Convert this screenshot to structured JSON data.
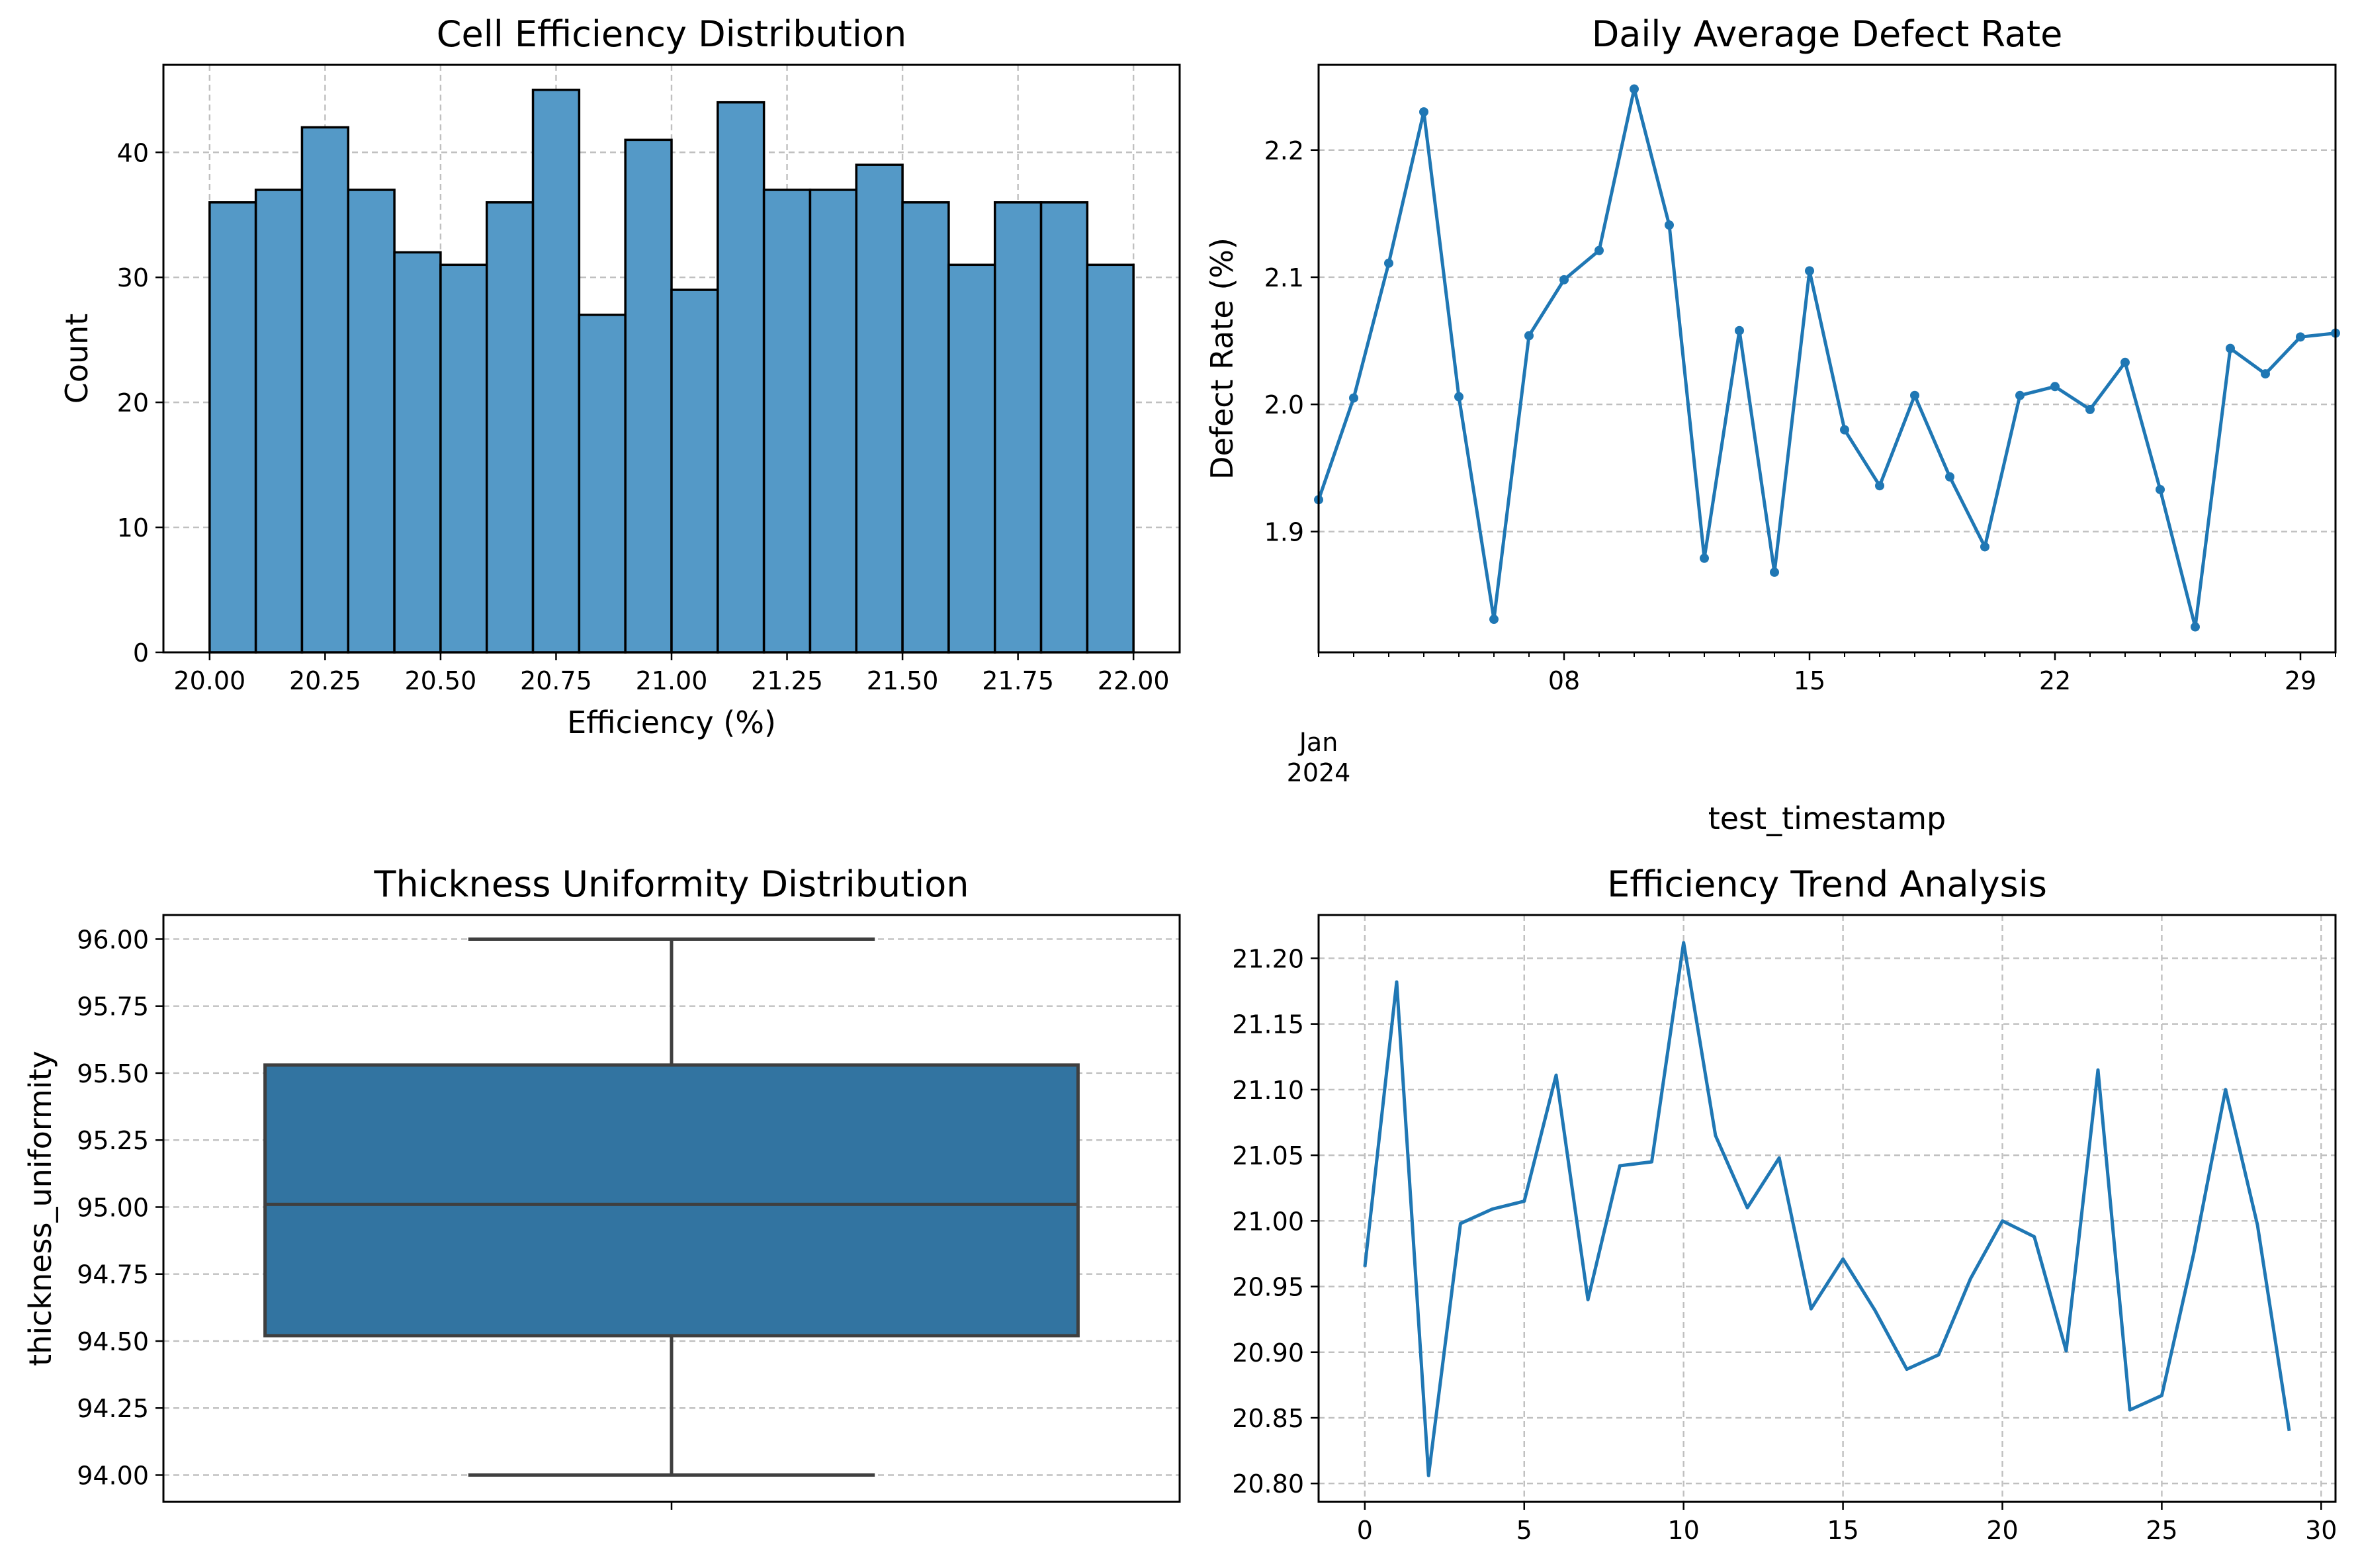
{
  "chart_data": [
    {
      "id": "hist",
      "type": "bar",
      "title": "Cell Efficiency Distribution",
      "xlabel": "Efficiency (%)",
      "ylabel": "Count",
      "bin_edges": [
        20.0,
        20.1,
        20.2,
        20.3,
        20.4,
        20.5,
        20.6,
        20.7,
        20.8,
        20.9,
        21.0,
        21.1,
        21.2,
        21.3,
        21.4,
        21.5,
        21.6,
        21.7,
        21.8,
        21.9,
        22.0
      ],
      "values": [
        36,
        37,
        42,
        37,
        32,
        31,
        36,
        45,
        27,
        41,
        29,
        44,
        37,
        37,
        39,
        36,
        31,
        36,
        36,
        31
      ],
      "xlim": [
        19.9,
        22.1
      ],
      "ylim": [
        0,
        47
      ],
      "xticks": [
        20.0,
        20.25,
        20.5,
        20.75,
        21.0,
        21.25,
        21.5,
        21.75,
        22.0
      ],
      "xtick_labels": [
        "20.00",
        "20.25",
        "20.50",
        "20.75",
        "21.00",
        "21.25",
        "21.50",
        "21.75",
        "22.00"
      ],
      "yticks": [
        0,
        10,
        20,
        30,
        40
      ],
      "ytick_labels": [
        "0",
        "10",
        "20",
        "30",
        "40"
      ],
      "grid": true,
      "color": "#5499c7"
    },
    {
      "id": "defect",
      "type": "line",
      "title": "Daily Average Defect Rate",
      "xlabel": "test_timestamp",
      "ylabel": "Defect Rate (%)",
      "x": [
        "2024-01-01",
        "2024-01-02",
        "2024-01-03",
        "2024-01-04",
        "2024-01-05",
        "2024-01-06",
        "2024-01-07",
        "2024-01-08",
        "2024-01-09",
        "2024-01-10",
        "2024-01-11",
        "2024-01-12",
        "2024-01-13",
        "2024-01-14",
        "2024-01-15",
        "2024-01-16",
        "2024-01-17",
        "2024-01-18",
        "2024-01-19",
        "2024-01-20",
        "2024-01-21",
        "2024-01-22",
        "2024-01-23",
        "2024-01-24",
        "2024-01-25",
        "2024-01-26",
        "2024-01-27",
        "2024-01-28",
        "2024-01-29",
        "2024-01-30"
      ],
      "values": [
        1.925,
        2.005,
        2.111,
        2.23,
        2.006,
        1.831,
        2.054,
        2.098,
        2.121,
        2.248,
        2.141,
        1.879,
        2.058,
        1.868,
        2.105,
        1.98,
        1.936,
        2.007,
        1.943,
        1.888,
        2.007,
        2.014,
        1.996,
        2.033,
        1.933,
        1.825,
        2.044,
        2.024,
        2.053,
        2.056
      ],
      "xlim": [
        "2024-01-01",
        "2024-01-30"
      ],
      "ylim": [
        1.805,
        2.267
      ],
      "xticks": [
        "2024-01-08",
        "2024-01-15",
        "2024-01-22",
        "2024-01-29"
      ],
      "xtick_labels": [
        "08",
        "15",
        "22",
        "29"
      ],
      "month_label": "Jan",
      "year_label": "2024",
      "yticks": [
        1.9,
        2.0,
        2.1,
        2.2
      ],
      "ytick_labels": [
        "1.9",
        "2.0",
        "2.1",
        "2.2"
      ],
      "grid": "y",
      "marker": "circle",
      "color": "#1f77b4"
    },
    {
      "id": "box",
      "type": "box",
      "title": "Thickness Uniformity Distribution",
      "xlabel": "",
      "ylabel": "thickness_uniformity",
      "min": 94.0,
      "q1": 94.52,
      "median": 95.01,
      "q3": 95.53,
      "max": 96.0,
      "ylim": [
        93.9,
        96.09
      ],
      "yticks": [
        94.0,
        94.25,
        94.5,
        94.75,
        95.0,
        95.25,
        95.5,
        95.75,
        96.0
      ],
      "ytick_labels": [
        "94.00",
        "94.25",
        "94.50",
        "94.75",
        "95.00",
        "95.25",
        "95.50",
        "95.75",
        "96.00"
      ],
      "grid": "y",
      "color": "#3274a1"
    },
    {
      "id": "trend",
      "type": "line",
      "title": "Efficiency Trend Analysis",
      "xlabel": "",
      "ylabel": "",
      "x": [
        0,
        1,
        2,
        3,
        4,
        5,
        6,
        7,
        8,
        9,
        10,
        11,
        12,
        13,
        14,
        15,
        16,
        17,
        18,
        19,
        20,
        21,
        22,
        23,
        24,
        25,
        26,
        27,
        28,
        29
      ],
      "values": [
        20.965,
        21.182,
        20.806,
        20.998,
        21.009,
        21.015,
        21.111,
        20.94,
        21.042,
        21.045,
        21.212,
        21.065,
        21.01,
        21.048,
        20.933,
        20.971,
        20.932,
        20.887,
        20.898,
        20.956,
        21.0,
        20.988,
        20.901,
        21.115,
        20.856,
        20.867,
        20.975,
        21.1,
        20.997,
        20.84
      ],
      "xlim": [
        -1.45,
        30.45
      ],
      "ylim": [
        20.786,
        21.233
      ],
      "xticks": [
        0,
        5,
        10,
        15,
        20,
        25,
        30
      ],
      "xtick_labels": [
        "0",
        "5",
        "10",
        "15",
        "20",
        "25",
        "30"
      ],
      "yticks": [
        20.8,
        20.85,
        20.9,
        20.95,
        21.0,
        21.05,
        21.1,
        21.15,
        21.2
      ],
      "ytick_labels": [
        "20.80",
        "20.85",
        "20.90",
        "20.95",
        "21.00",
        "21.05",
        "21.10",
        "21.15",
        "21.20"
      ],
      "grid": true,
      "color": "#1f77b4"
    }
  ]
}
